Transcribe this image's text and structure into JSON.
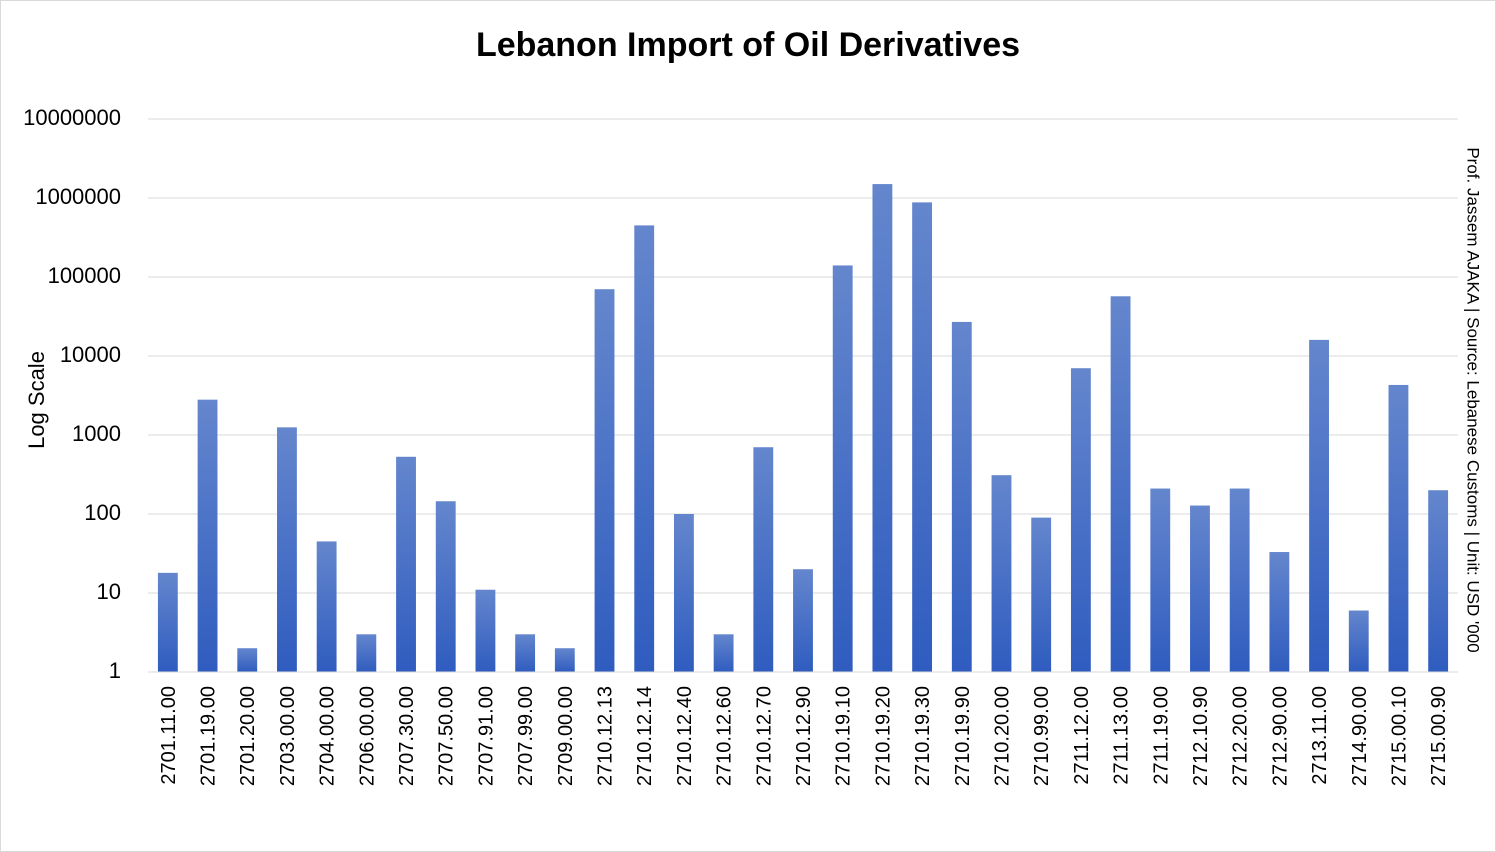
{
  "chart_data": {
    "type": "bar",
    "title": "Lebanon Import of Oil Derivatives",
    "ylabel": "Log Scale",
    "xlabel": "",
    "yscale": "log",
    "ylim": [
      1,
      10000000
    ],
    "ytick_labels": [
      "1",
      "10",
      "100",
      "1000",
      "10000",
      "100000",
      "1000000",
      "10000000"
    ],
    "grid": true,
    "legend": "none",
    "bar_color": "#4472C4",
    "credit": "Prof. Jassem AJAKA | Source: Lebanese Customs | Unit: USD '000",
    "categories": [
      "2701.11.00",
      "2701.19.00",
      "2701.20.00",
      "2703.00.00",
      "2704.00.00",
      "2706.00.00",
      "2707.30.00",
      "2707.50.00",
      "2707.91.00",
      "2707.99.00",
      "2709.00.00",
      "2710.12.13",
      "2710.12.14",
      "2710.12.40",
      "2710.12.60",
      "2710.12.70",
      "2710.12.90",
      "2710.19.10",
      "2710.19.20",
      "2710.19.30",
      "2710.19.90",
      "2710.20.00",
      "2710.99.00",
      "2711.12.00",
      "2711.13.00",
      "2711.19.00",
      "2712.10.90",
      "2712.20.00",
      "2712.90.00",
      "2713.11.00",
      "2714.90.00",
      "2715.00.10",
      "2715.00.90"
    ],
    "values": [
      18,
      2800,
      2,
      1250,
      45,
      3,
      530,
      145,
      11,
      3,
      2,
      70000,
      450000,
      100,
      3,
      700,
      20,
      140000,
      1500000,
      880000,
      27000,
      310,
      90,
      7000,
      57000,
      210,
      128,
      210,
      33,
      16000,
      6,
      4300,
      200
    ]
  }
}
